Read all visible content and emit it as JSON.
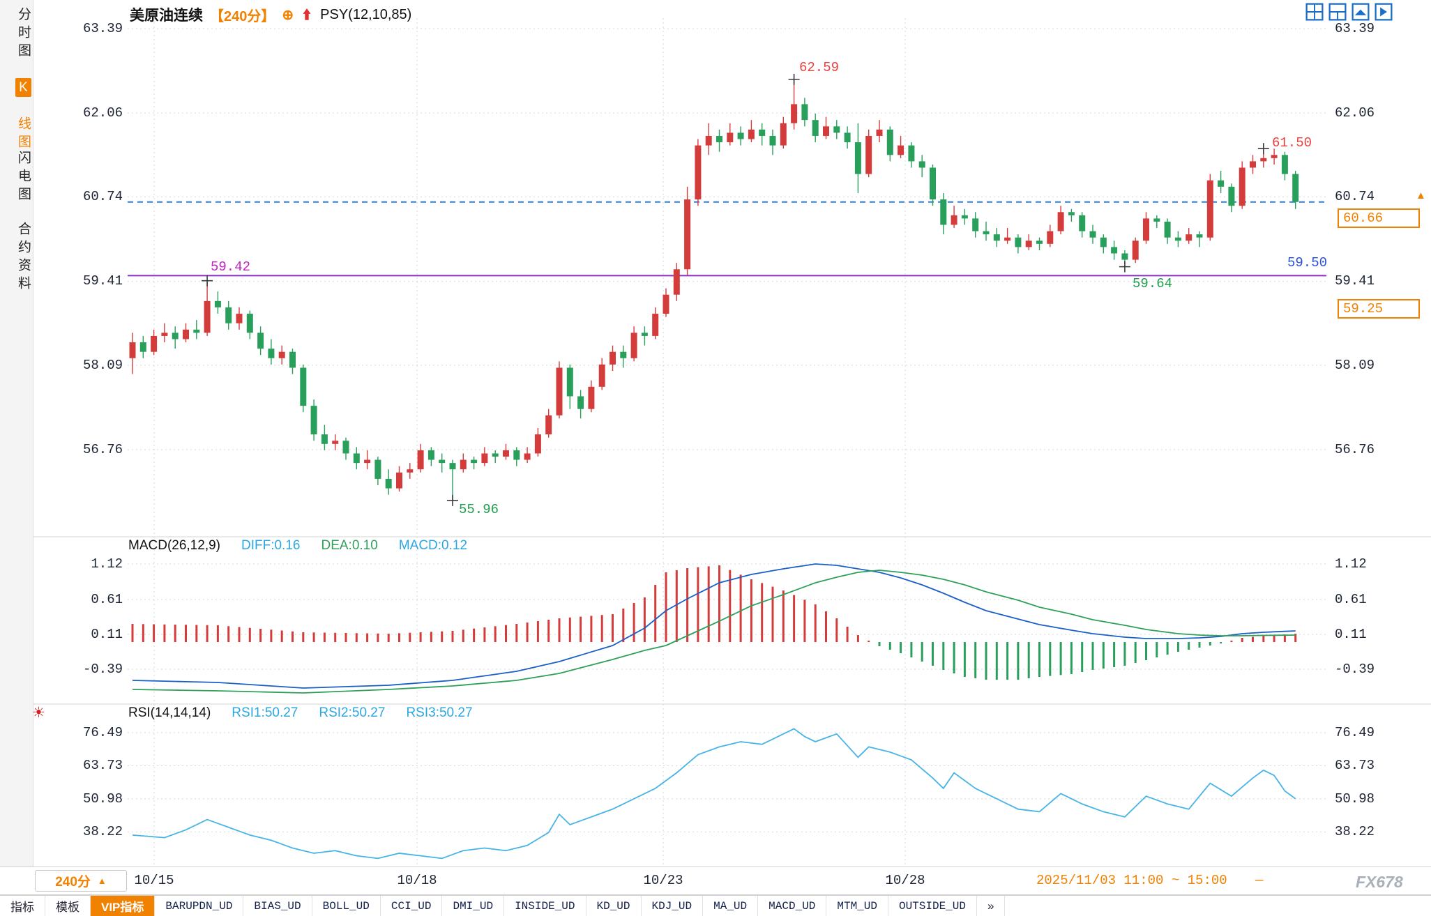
{
  "header": {
    "symbol": "美原油连续",
    "period": "【240分】",
    "indicator": "PSY(12,10,85)"
  },
  "icons": {
    "plus_circle": "⊕",
    "up_triangle": "▲",
    "sun": "☀",
    "chevrons": "»"
  },
  "sidebar": {
    "tabs": [
      {
        "label": "分时图",
        "active": false
      },
      {
        "label": "K线图",
        "active": true,
        "hl": "K",
        "rest": "线图"
      },
      {
        "label": "闪电图",
        "active": false
      },
      {
        "label": "合约资料",
        "active": false
      }
    ]
  },
  "price_tags": {
    "last": "60.66",
    "level": "59.50",
    "settle": "59.25"
  },
  "time_axis": {
    "period_button": "240分",
    "highlight": "2025/11/03 11:00 ~ 15:00",
    "dash": "—"
  },
  "footer_tabs": [
    "指标",
    "模板",
    "VIP指标",
    "BARUPDN_UD",
    "BIAS_UD",
    "BOLL_UD",
    "CCI_UD",
    "DMI_UD",
    "INSIDE_UD",
    "KD_UD",
    "KDJ_UD",
    "MA_UD",
    "MACD_UD",
    "MTM_UD",
    "OUTSIDE_UD",
    "»"
  ],
  "window": {
    "watermark": "FX678"
  },
  "chart_data": [
    {
      "type": "candlestick",
      "title": "美原油连续 240分 K线",
      "yticks": [
        63.39,
        62.06,
        60.74,
        59.41,
        58.09,
        56.76
      ],
      "xticklabels": [
        "10/15",
        "10/18",
        "10/23",
        "10/28"
      ],
      "up_color": "#d43c3c",
      "down_color": "#28a05c",
      "hlines": [
        {
          "price": 60.66,
          "label": "60.66",
          "style": "dashed",
          "color": "#2f7fd9"
        },
        {
          "price": 59.5,
          "label": "59.50",
          "style": "solid",
          "color": "#8b2fc9"
        }
      ],
      "annotations": [
        {
          "i": 7,
          "price": 59.42,
          "label": "59.42"
        },
        {
          "i": 30,
          "price": 55.96,
          "label": "55.96"
        },
        {
          "i": 62,
          "price": 62.59,
          "label": "62.59"
        },
        {
          "i": 93,
          "price": 59.64,
          "label": "59.64"
        },
        {
          "i": 106,
          "price": 61.5,
          "label": "61.50"
        }
      ],
      "candles": [
        [
          58.2,
          58.6,
          57.95,
          58.45
        ],
        [
          58.45,
          58.55,
          58.2,
          58.3
        ],
        [
          58.3,
          58.65,
          58.25,
          58.55
        ],
        [
          58.55,
          58.75,
          58.45,
          58.6
        ],
        [
          58.6,
          58.7,
          58.35,
          58.5
        ],
        [
          58.5,
          58.75,
          58.45,
          58.65
        ],
        [
          58.65,
          58.8,
          58.5,
          58.6
        ],
        [
          58.6,
          59.42,
          58.55,
          59.1
        ],
        [
          59.1,
          59.25,
          58.9,
          59.0
        ],
        [
          59.0,
          59.1,
          58.65,
          58.75
        ],
        [
          58.75,
          59.0,
          58.65,
          58.9
        ],
        [
          58.9,
          58.95,
          58.5,
          58.6
        ],
        [
          58.6,
          58.7,
          58.25,
          58.35
        ],
        [
          58.35,
          58.5,
          58.1,
          58.2
        ],
        [
          58.2,
          58.4,
          58.1,
          58.3
        ],
        [
          58.3,
          58.35,
          57.95,
          58.05
        ],
        [
          58.05,
          58.1,
          57.35,
          57.45
        ],
        [
          57.45,
          57.55,
          56.9,
          57.0
        ],
        [
          57.0,
          57.15,
          56.75,
          56.85
        ],
        [
          56.85,
          57.0,
          56.75,
          56.9
        ],
        [
          56.9,
          56.95,
          56.6,
          56.7
        ],
        [
          56.7,
          56.8,
          56.45,
          56.55
        ],
        [
          56.55,
          56.75,
          56.45,
          56.6
        ],
        [
          56.6,
          56.65,
          56.2,
          56.3
        ],
        [
          56.3,
          56.45,
          56.05,
          56.15
        ],
        [
          56.15,
          56.5,
          56.1,
          56.4
        ],
        [
          56.4,
          56.55,
          56.3,
          56.45
        ],
        [
          56.45,
          56.85,
          56.4,
          56.75
        ],
        [
          56.75,
          56.8,
          56.5,
          56.6
        ],
        [
          56.6,
          56.7,
          56.4,
          56.55
        ],
        [
          56.55,
          56.6,
          55.96,
          56.45
        ],
        [
          56.45,
          56.7,
          56.4,
          56.6
        ],
        [
          56.6,
          56.65,
          56.45,
          56.55
        ],
        [
          56.55,
          56.8,
          56.5,
          56.7
        ],
        [
          56.7,
          56.75,
          56.55,
          56.65
        ],
        [
          56.65,
          56.85,
          56.6,
          56.75
        ],
        [
          56.75,
          56.8,
          56.5,
          56.6
        ],
        [
          56.6,
          56.8,
          56.55,
          56.7
        ],
        [
          56.7,
          57.1,
          56.65,
          57.0
        ],
        [
          57.0,
          57.4,
          56.95,
          57.3
        ],
        [
          57.3,
          58.15,
          57.25,
          58.05
        ],
        [
          58.05,
          58.1,
          57.4,
          57.6
        ],
        [
          57.6,
          57.7,
          57.25,
          57.4
        ],
        [
          57.4,
          57.85,
          57.35,
          57.75
        ],
        [
          57.75,
          58.2,
          57.7,
          58.1
        ],
        [
          58.1,
          58.4,
          58.0,
          58.3
        ],
        [
          58.3,
          58.4,
          58.05,
          58.2
        ],
        [
          58.2,
          58.7,
          58.15,
          58.6
        ],
        [
          58.6,
          58.7,
          58.4,
          58.55
        ],
        [
          58.55,
          59.0,
          58.5,
          58.9
        ],
        [
          58.9,
          59.3,
          58.85,
          59.2
        ],
        [
          59.2,
          59.7,
          59.1,
          59.6
        ],
        [
          59.6,
          60.9,
          59.5,
          60.7
        ],
        [
          60.7,
          61.65,
          60.6,
          61.55
        ],
        [
          61.55,
          61.9,
          61.4,
          61.7
        ],
        [
          61.7,
          61.8,
          61.45,
          61.6
        ],
        [
          61.6,
          61.9,
          61.55,
          61.75
        ],
        [
          61.75,
          61.85,
          61.55,
          61.65
        ],
        [
          61.65,
          61.95,
          61.6,
          61.8
        ],
        [
          61.8,
          61.9,
          61.55,
          61.7
        ],
        [
          61.7,
          61.8,
          61.4,
          61.55
        ],
        [
          61.55,
          62.0,
          61.5,
          61.9
        ],
        [
          61.9,
          62.59,
          61.8,
          62.2
        ],
        [
          62.2,
          62.3,
          61.85,
          61.95
        ],
        [
          61.95,
          62.05,
          61.6,
          61.7
        ],
        [
          61.7,
          62.0,
          61.65,
          61.85
        ],
        [
          61.85,
          61.95,
          61.65,
          61.75
        ],
        [
          61.75,
          61.85,
          61.5,
          61.6
        ],
        [
          61.6,
          61.9,
          60.8,
          61.1
        ],
        [
          61.1,
          61.8,
          61.05,
          61.7
        ],
        [
          61.7,
          61.95,
          61.6,
          61.8
        ],
        [
          61.8,
          61.85,
          61.3,
          61.4
        ],
        [
          61.4,
          61.7,
          61.35,
          61.55
        ],
        [
          61.55,
          61.6,
          61.2,
          61.3
        ],
        [
          61.3,
          61.4,
          61.05,
          61.2
        ],
        [
          61.2,
          61.25,
          60.6,
          60.7
        ],
        [
          60.7,
          60.8,
          60.15,
          60.3
        ],
        [
          60.3,
          60.6,
          60.25,
          60.45
        ],
        [
          60.45,
          60.55,
          60.3,
          60.4
        ],
        [
          60.4,
          60.5,
          60.1,
          60.2
        ],
        [
          60.2,
          60.35,
          60.05,
          60.15
        ],
        [
          60.15,
          60.25,
          59.95,
          60.05
        ],
        [
          60.05,
          60.25,
          60.0,
          60.1
        ],
        [
          60.1,
          60.15,
          59.85,
          59.95
        ],
        [
          59.95,
          60.15,
          59.9,
          60.05
        ],
        [
          60.05,
          60.1,
          59.9,
          60.0
        ],
        [
          60.0,
          60.3,
          59.95,
          60.2
        ],
        [
          60.2,
          60.6,
          60.15,
          60.5
        ],
        [
          60.5,
          60.55,
          60.35,
          60.45
        ],
        [
          60.45,
          60.5,
          60.1,
          60.2
        ],
        [
          60.2,
          60.3,
          60.0,
          60.1
        ],
        [
          60.1,
          60.15,
          59.85,
          59.95
        ],
        [
          59.95,
          60.05,
          59.75,
          59.85
        ],
        [
          59.85,
          59.9,
          59.64,
          59.75
        ],
        [
          59.75,
          60.1,
          59.7,
          60.05
        ],
        [
          60.05,
          60.5,
          60.0,
          60.4
        ],
        [
          60.4,
          60.45,
          60.25,
          60.35
        ],
        [
          60.35,
          60.4,
          60.0,
          60.1
        ],
        [
          60.1,
          60.2,
          59.95,
          60.05
        ],
        [
          60.05,
          60.25,
          60.0,
          60.15
        ],
        [
          60.15,
          60.2,
          59.95,
          60.1
        ],
        [
          60.1,
          61.1,
          60.05,
          61.0
        ],
        [
          61.0,
          61.15,
          60.8,
          60.9
        ],
        [
          60.9,
          60.95,
          60.5,
          60.6
        ],
        [
          60.6,
          61.3,
          60.55,
          61.2
        ],
        [
          61.2,
          61.4,
          61.1,
          61.3
        ],
        [
          61.3,
          61.5,
          61.2,
          61.35
        ],
        [
          61.35,
          61.5,
          61.25,
          61.4
        ],
        [
          61.4,
          61.45,
          61.0,
          61.1
        ],
        [
          61.1,
          61.15,
          60.55,
          60.66
        ]
      ]
    },
    {
      "type": "macd",
      "title": "MACD(26,12,9)",
      "labels": {
        "diff": "DIFF:0.16",
        "dea": "DEA:0.10",
        "macd": "MACD:0.12"
      },
      "yticks": [
        1.12,
        0.61,
        0.11,
        -0.39
      ],
      "hist_rule": "2*(diff-dea)",
      "colors": {
        "diff": "#1a5fc8",
        "dea": "#2fa05a",
        "hist_up": "#d43c3c",
        "hist_down": "#28a05c"
      },
      "diff_keys": [
        [
          0,
          -0.55
        ],
        [
          8,
          -0.58
        ],
        [
          16,
          -0.66
        ],
        [
          24,
          -0.62
        ],
        [
          30,
          -0.55
        ],
        [
          36,
          -0.42
        ],
        [
          40,
          -0.28
        ],
        [
          45,
          -0.05
        ],
        [
          48,
          0.2
        ],
        [
          50,
          0.45
        ],
        [
          52,
          0.62
        ],
        [
          55,
          0.85
        ],
        [
          58,
          0.97
        ],
        [
          61,
          1.05
        ],
        [
          64,
          1.12
        ],
        [
          66,
          1.1
        ],
        [
          68,
          1.05
        ],
        [
          70,
          1.0
        ],
        [
          72,
          0.92
        ],
        [
          74,
          0.82
        ],
        [
          76,
          0.7
        ],
        [
          78,
          0.57
        ],
        [
          80,
          0.45
        ],
        [
          83,
          0.33
        ],
        [
          85,
          0.25
        ],
        [
          88,
          0.17
        ],
        [
          90,
          0.12
        ],
        [
          93,
          0.07
        ],
        [
          95,
          0.05
        ],
        [
          98,
          0.05
        ],
        [
          100,
          0.06
        ],
        [
          102,
          0.08
        ],
        [
          104,
          0.12
        ],
        [
          106,
          0.14
        ],
        [
          109,
          0.16
        ]
      ],
      "dea_keys": [
        [
          0,
          -0.68
        ],
        [
          8,
          -0.7
        ],
        [
          16,
          -0.73
        ],
        [
          24,
          -0.68
        ],
        [
          30,
          -0.63
        ],
        [
          36,
          -0.55
        ],
        [
          40,
          -0.45
        ],
        [
          45,
          -0.25
        ],
        [
          48,
          -0.12
        ],
        [
          50,
          -0.05
        ],
        [
          52,
          0.09
        ],
        [
          55,
          0.3
        ],
        [
          58,
          0.52
        ],
        [
          61,
          0.68
        ],
        [
          64,
          0.85
        ],
        [
          66,
          0.93
        ],
        [
          68,
          1.0
        ],
        [
          70,
          1.03
        ],
        [
          72,
          1.0
        ],
        [
          74,
          0.96
        ],
        [
          76,
          0.9
        ],
        [
          78,
          0.82
        ],
        [
          80,
          0.72
        ],
        [
          83,
          0.6
        ],
        [
          85,
          0.5
        ],
        [
          88,
          0.4
        ],
        [
          90,
          0.32
        ],
        [
          93,
          0.24
        ],
        [
          95,
          0.18
        ],
        [
          98,
          0.12
        ],
        [
          100,
          0.1
        ],
        [
          102,
          0.09
        ],
        [
          104,
          0.09
        ],
        [
          106,
          0.095
        ],
        [
          109,
          0.1
        ]
      ]
    },
    {
      "type": "line",
      "title": "RSI(14,14,14)",
      "labels": {
        "rsi1": "RSI1:50.27",
        "rsi2": "RSI2:50.27",
        "rsi3": "RSI3:50.27"
      },
      "yticks": [
        76.49,
        63.73,
        50.98,
        38.22
      ],
      "color": "#46b4e6",
      "keys": [
        [
          0,
          37
        ],
        [
          3,
          36
        ],
        [
          5,
          39
        ],
        [
          7,
          43
        ],
        [
          9,
          40
        ],
        [
          11,
          37
        ],
        [
          13,
          35
        ],
        [
          15,
          32
        ],
        [
          17,
          30
        ],
        [
          19,
          31
        ],
        [
          21,
          29
        ],
        [
          23,
          28
        ],
        [
          25,
          30
        ],
        [
          27,
          29
        ],
        [
          29,
          28
        ],
        [
          31,
          31
        ],
        [
          33,
          32
        ],
        [
          35,
          31
        ],
        [
          37,
          33
        ],
        [
          39,
          38
        ],
        [
          40,
          45
        ],
        [
          41,
          41
        ],
        [
          43,
          44
        ],
        [
          45,
          47
        ],
        [
          47,
          51
        ],
        [
          49,
          55
        ],
        [
          51,
          61
        ],
        [
          53,
          68
        ],
        [
          55,
          71
        ],
        [
          57,
          73
        ],
        [
          59,
          72
        ],
        [
          60,
          74
        ],
        [
          62,
          78
        ],
        [
          63,
          75
        ],
        [
          64,
          73
        ],
        [
          66,
          76
        ],
        [
          68,
          67
        ],
        [
          69,
          71
        ],
        [
          71,
          69
        ],
        [
          73,
          66
        ],
        [
          75,
          59
        ],
        [
          76,
          55
        ],
        [
          77,
          61
        ],
        [
          79,
          55
        ],
        [
          81,
          51
        ],
        [
          83,
          47
        ],
        [
          85,
          46
        ],
        [
          87,
          53
        ],
        [
          89,
          49
        ],
        [
          91,
          46
        ],
        [
          93,
          44
        ],
        [
          95,
          52
        ],
        [
          97,
          49
        ],
        [
          99,
          47
        ],
        [
          101,
          57
        ],
        [
          103,
          52
        ],
        [
          105,
          59
        ],
        [
          106,
          62
        ],
        [
          107,
          60
        ],
        [
          108,
          54
        ],
        [
          109,
          51
        ]
      ]
    }
  ]
}
